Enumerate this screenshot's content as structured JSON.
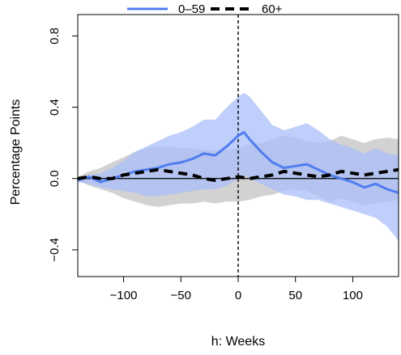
{
  "chart_data": {
    "type": "line",
    "xlabel": "h: Weeks",
    "ylabel": "Percentage Points",
    "xlim": [
      -140,
      140
    ],
    "ylim": [
      -0.55,
      0.92
    ],
    "x_ticks": [
      -100,
      -50,
      0,
      50,
      100
    ],
    "y_ticks": [
      -0.4,
      0.0,
      0.4,
      0.8
    ],
    "x_tick_labels": [
      "−100",
      "−50",
      "0",
      "50",
      "100"
    ],
    "y_tick_labels": [
      "−0.4",
      "0.0",
      "0.4",
      "0.8"
    ],
    "legend_position": "top",
    "hline": 0,
    "vline": 0,
    "series": [
      {
        "name": "0–59",
        "style": "solid",
        "color": "#4f7df0",
        "band_color": "#a9bdf8",
        "x": [
          -140,
          -130,
          -120,
          -110,
          -100,
          -90,
          -80,
          -70,
          -60,
          -50,
          -40,
          -30,
          -20,
          -10,
          0,
          5,
          10,
          20,
          30,
          40,
          50,
          60,
          70,
          80,
          90,
          100,
          110,
          120,
          130,
          140
        ],
        "y": [
          -0.01,
          0.01,
          -0.02,
          0.0,
          0.02,
          0.04,
          0.05,
          0.06,
          0.08,
          0.09,
          0.11,
          0.14,
          0.13,
          0.18,
          0.24,
          0.26,
          0.22,
          0.15,
          0.09,
          0.06,
          0.07,
          0.08,
          0.05,
          0.02,
          0.0,
          -0.02,
          -0.05,
          -0.03,
          -0.06,
          -0.08
        ],
        "lower": [
          -0.02,
          -0.03,
          -0.05,
          -0.06,
          -0.07,
          -0.08,
          -0.1,
          -0.1,
          -0.09,
          -0.08,
          -0.07,
          -0.06,
          -0.06,
          -0.04,
          0.0,
          0.02,
          0.0,
          -0.03,
          -0.06,
          -0.09,
          -0.1,
          -0.12,
          -0.12,
          -0.14,
          -0.16,
          -0.18,
          -0.2,
          -0.22,
          -0.27,
          -0.35
        ],
        "upper": [
          0.0,
          0.02,
          0.03,
          0.06,
          0.1,
          0.15,
          0.18,
          0.21,
          0.24,
          0.26,
          0.29,
          0.33,
          0.33,
          0.4,
          0.46,
          0.48,
          0.46,
          0.38,
          0.3,
          0.27,
          0.29,
          0.31,
          0.27,
          0.22,
          0.19,
          0.17,
          0.14,
          0.17,
          0.14,
          0.13
        ]
      },
      {
        "name": "60+",
        "style": "dashed",
        "color": "#000000",
        "band_color": "#d2d2d2",
        "x": [
          -140,
          -130,
          -120,
          -110,
          -100,
          -90,
          -80,
          -70,
          -60,
          -50,
          -40,
          -30,
          -20,
          -10,
          0,
          10,
          20,
          30,
          40,
          50,
          60,
          70,
          80,
          90,
          100,
          110,
          120,
          130,
          140
        ],
        "y": [
          0.0,
          0.01,
          0.0,
          0.0,
          0.02,
          0.03,
          0.04,
          0.05,
          0.04,
          0.03,
          0.02,
          0.0,
          -0.01,
          0.0,
          0.01,
          0.0,
          0.01,
          0.02,
          0.04,
          0.03,
          0.02,
          0.01,
          0.02,
          0.04,
          0.03,
          0.02,
          0.03,
          0.04,
          0.05
        ],
        "lower": [
          -0.01,
          -0.04,
          -0.06,
          -0.08,
          -0.11,
          -0.13,
          -0.15,
          -0.16,
          -0.15,
          -0.14,
          -0.14,
          -0.13,
          -0.14,
          -0.13,
          -0.13,
          -0.12,
          -0.1,
          -0.09,
          -0.07,
          -0.06,
          -0.07,
          -0.1,
          -0.13,
          -0.11,
          -0.13,
          -0.15,
          -0.14,
          -0.13,
          -0.12
        ],
        "upper": [
          0.01,
          0.04,
          0.06,
          0.09,
          0.12,
          0.15,
          0.17,
          0.18,
          0.18,
          0.17,
          0.17,
          0.16,
          0.16,
          0.16,
          0.17,
          0.19,
          0.2,
          0.22,
          0.24,
          0.23,
          0.21,
          0.2,
          0.21,
          0.24,
          0.22,
          0.2,
          0.22,
          0.23,
          0.22
        ]
      }
    ]
  },
  "colors": {
    "series_0_line": "#4f7df0",
    "series_0_band": "#a9bdf8",
    "series_1_line": "#000000",
    "series_1_band": "#d2d2d2"
  }
}
